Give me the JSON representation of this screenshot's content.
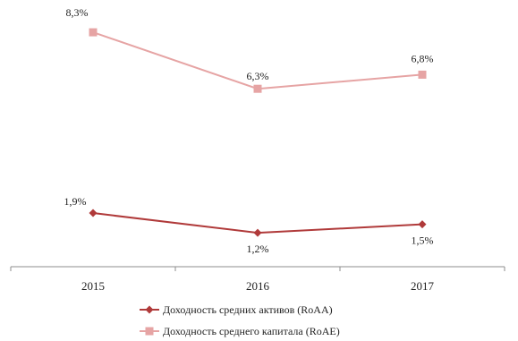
{
  "chart_data": {
    "type": "line",
    "categories": [
      "2015",
      "2016",
      "2017"
    ],
    "series": [
      {
        "name": "Доходность средних активов (RoAA)",
        "values": [
          1.9,
          1.2,
          1.5
        ],
        "labels": [
          "1,9%",
          "1,2%",
          "1,5%"
        ],
        "color": "#b03a3a",
        "marker": "diamond"
      },
      {
        "name": "Доходность среднего капитала (RoAE)",
        "values": [
          8.3,
          6.3,
          6.8
        ],
        "labels": [
          "8,3%",
          "6,3%",
          "6,8%"
        ],
        "color": "#e6a4a4",
        "marker": "square"
      }
    ],
    "title": "",
    "xlabel": "",
    "ylabel": "",
    "ylim": [
      0,
      9
    ],
    "grid": false,
    "legend_position": "bottom"
  }
}
